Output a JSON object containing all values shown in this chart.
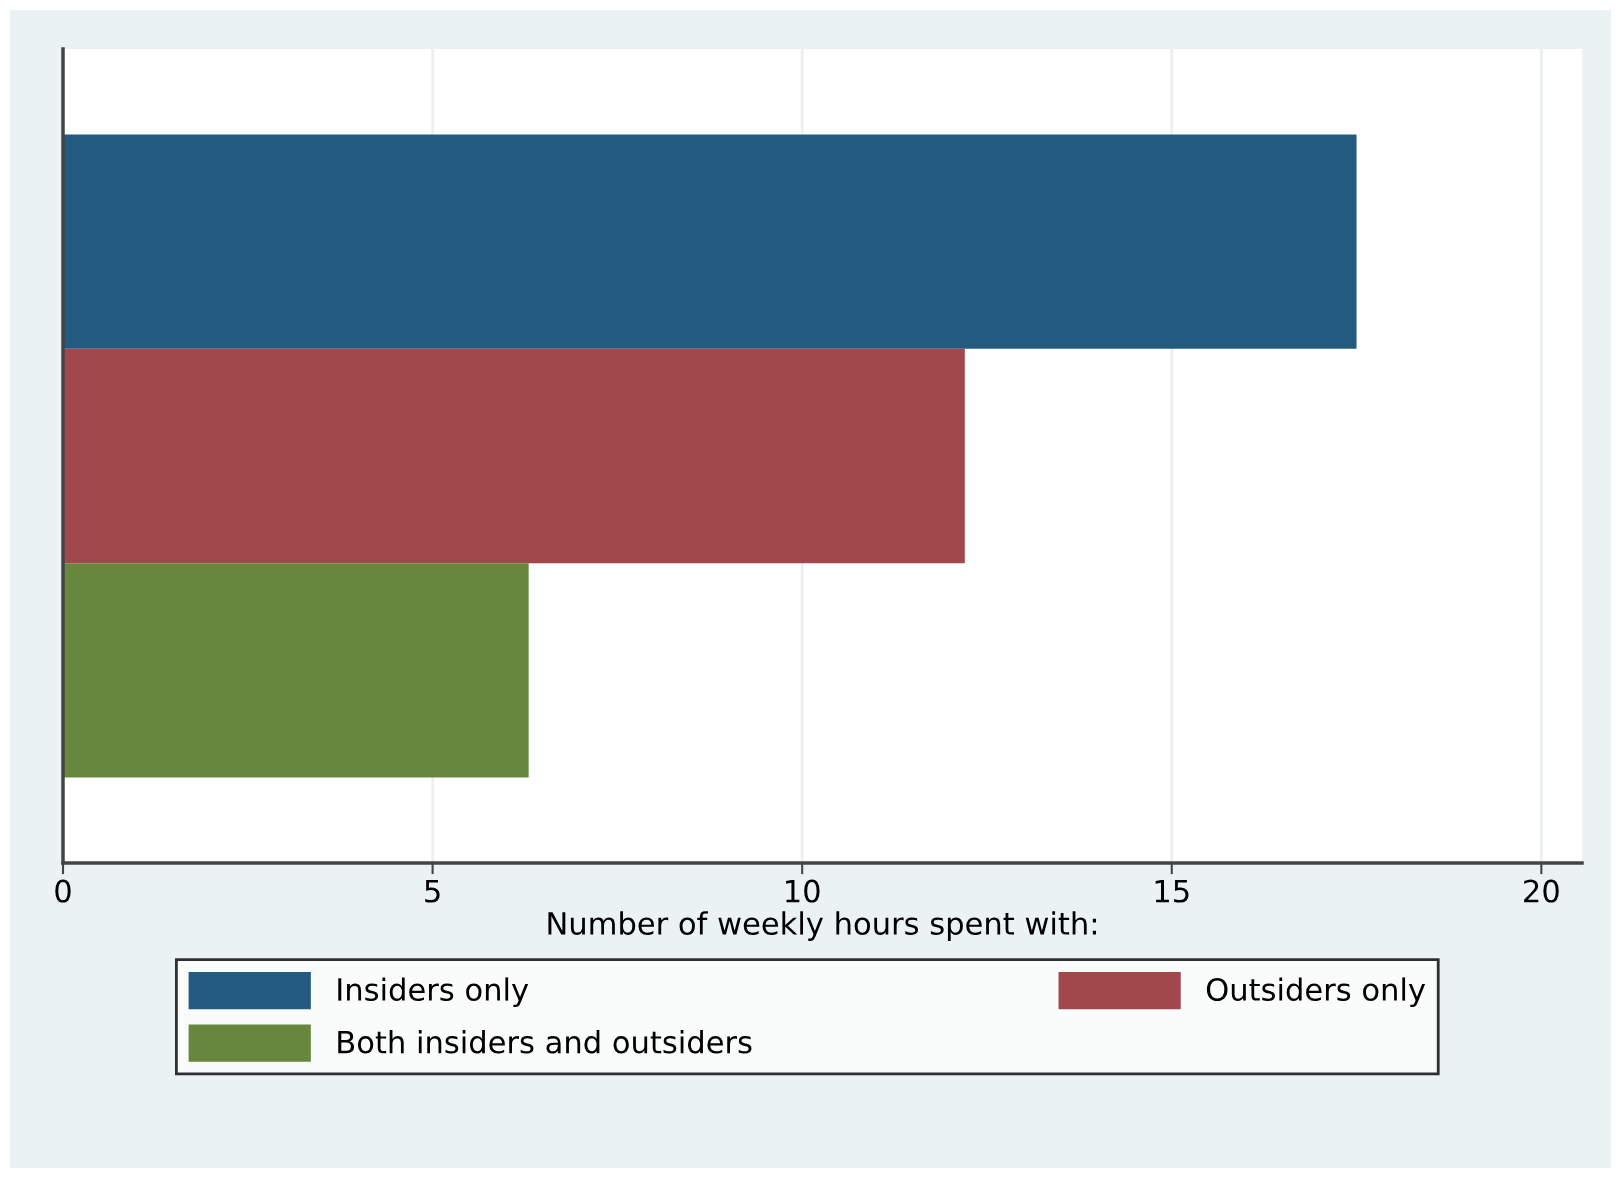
{
  "chart_data": {
    "type": "bar",
    "orientation": "horizontal",
    "categories": [
      null
    ],
    "series": [
      {
        "name": "Insiders only",
        "color": "#235a80",
        "values": [
          17.5
        ]
      },
      {
        "name": "Outsiders only",
        "color": "#a0484c",
        "values": [
          12.2
        ]
      },
      {
        "name": "Both insiders and outsiders",
        "color": "#67873e",
        "values": [
          6.3
        ]
      }
    ],
    "xlabel": "Number of weekly hours spent with:",
    "xlim": [
      0,
      20.55
    ],
    "xticks": [
      0,
      5,
      10,
      15,
      20
    ],
    "grid": "x",
    "legend": "bottom",
    "tick_labels": "x"
  }
}
